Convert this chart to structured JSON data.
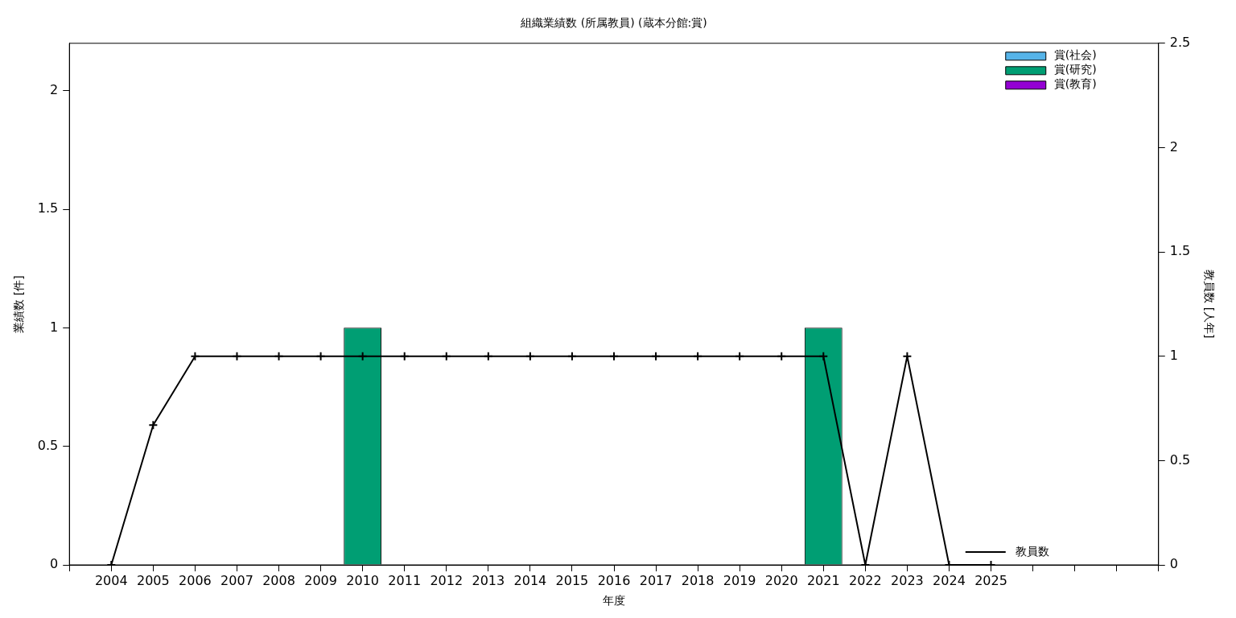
{
  "chart_data": {
    "type": "bar",
    "title": "組織業績数 (所属教員) (蔵本分館:賞)",
    "xlabel": "年度",
    "ylabel": "業績数 [件]",
    "y2label": "教員数 [人年]",
    "categories": [
      null,
      "2004",
      "2005",
      "2006",
      "2007",
      "2008",
      "2009",
      "2010",
      "2011",
      "2012",
      "2013",
      "2014",
      "2015",
      "2016",
      "2017",
      "2018",
      "2019",
      "2020",
      "2021",
      "2022",
      "2023",
      "2024",
      "2025",
      null,
      null,
      null,
      null
    ],
    "stacked": true,
    "ylim": [
      0,
      2.2
    ],
    "yticks": [
      0,
      0.5,
      1,
      1.5,
      2
    ],
    "y2lim": [
      0,
      2.5
    ],
    "y2ticks": [
      0,
      0.5,
      1,
      1.5,
      2,
      2.5
    ],
    "grid": false,
    "legend": "top right",
    "series": [
      {
        "name": "賞(社会)",
        "color": "#56b4e9",
        "values": [
          null,
          0,
          0,
          0,
          0,
          0,
          0,
          0,
          0,
          0,
          0,
          0,
          0,
          0,
          0,
          0,
          0,
          0,
          0,
          0,
          0,
          0,
          0,
          null,
          null,
          null,
          null
        ]
      },
      {
        "name": "賞(研究)",
        "color": "#009e73",
        "values": [
          null,
          0,
          0,
          0,
          0,
          0,
          0,
          1,
          0,
          0,
          0,
          0,
          0,
          0,
          0,
          0,
          0,
          0,
          1,
          0,
          0,
          0,
          0,
          null,
          null,
          null,
          null
        ]
      },
      {
        "name": "賞(教育)",
        "color": "#9400d3",
        "values": [
          null,
          0,
          0,
          0,
          0,
          0,
          0,
          0,
          0,
          0,
          0,
          0,
          0,
          0,
          0,
          0,
          0,
          0,
          0,
          0,
          0,
          0,
          0,
          null,
          null,
          null,
          null
        ]
      },
      {
        "name": "教員数",
        "type": "line",
        "axis": "y2",
        "color": "#000000",
        "marker": "cross",
        "line_style": "solid",
        "values": [
          null,
          0,
          0.67,
          1,
          1,
          1,
          1,
          1,
          1,
          1,
          1,
          1,
          1,
          1,
          1,
          1,
          1,
          1,
          1,
          0,
          1,
          0,
          0,
          null,
          null,
          null,
          null
        ]
      }
    ]
  }
}
